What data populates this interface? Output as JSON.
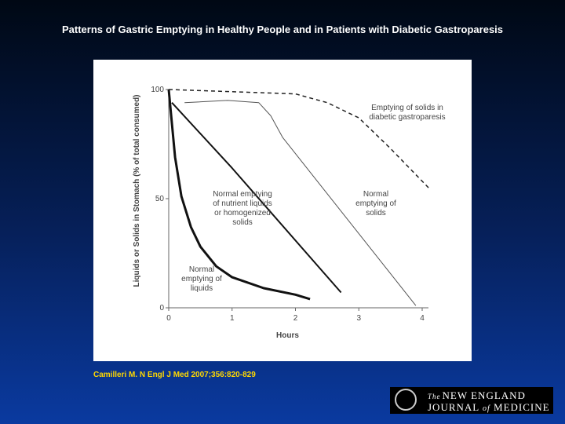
{
  "title": "Patterns of Gastric Emptying in Healthy People and in Patients with Diabetic Gastroparesis",
  "chart_data": {
    "type": "line",
    "xlabel": "Hours",
    "ylabel": "Liquids or Solids in Stomach (% of total consumed)",
    "xlim": [
      0,
      4
    ],
    "ylim": [
      0,
      100
    ],
    "xticks": [
      0,
      1,
      2,
      3,
      4
    ],
    "yticks": [
      0,
      50,
      100
    ],
    "series": [
      {
        "name": "Normal emptying of liquids",
        "color": "#111111",
        "x": [
          0,
          0.1,
          0.2,
          0.35,
          0.5,
          0.75,
          1.0,
          1.5,
          2.0,
          2.23
        ],
        "values": [
          100,
          69,
          51,
          37,
          28,
          19,
          14,
          9,
          6,
          4
        ]
      },
      {
        "name": "Normal emptying of nutrient liquids or homogenized solids",
        "color": "#111111",
        "x": [
          0.05,
          1.0,
          2.72
        ],
        "values": [
          94,
          64,
          7
        ]
      },
      {
        "name": "Normal emptying of solids",
        "color": "#555555",
        "x": [
          0.25,
          0.93,
          1.42,
          1.61,
          1.8,
          3.9
        ],
        "values": [
          94,
          95,
          94,
          88,
          78,
          1
        ]
      },
      {
        "name": "Emptying of solids in diabetic gastroparesis",
        "color": "#222222",
        "dashed": true,
        "x": [
          0,
          1,
          2,
          2.5,
          3,
          3.5,
          4.1
        ],
        "values": [
          100,
          99,
          98,
          94,
          87,
          73,
          55
        ]
      }
    ]
  },
  "citation": "Camilleri M. N Engl J Med 2007;356:820-829",
  "logo": {
    "prefix": "The",
    "line1": "NEW ENGLAND",
    "line2a": "JOURNAL",
    "line2b": "of",
    "line2c": "MEDICINE"
  }
}
